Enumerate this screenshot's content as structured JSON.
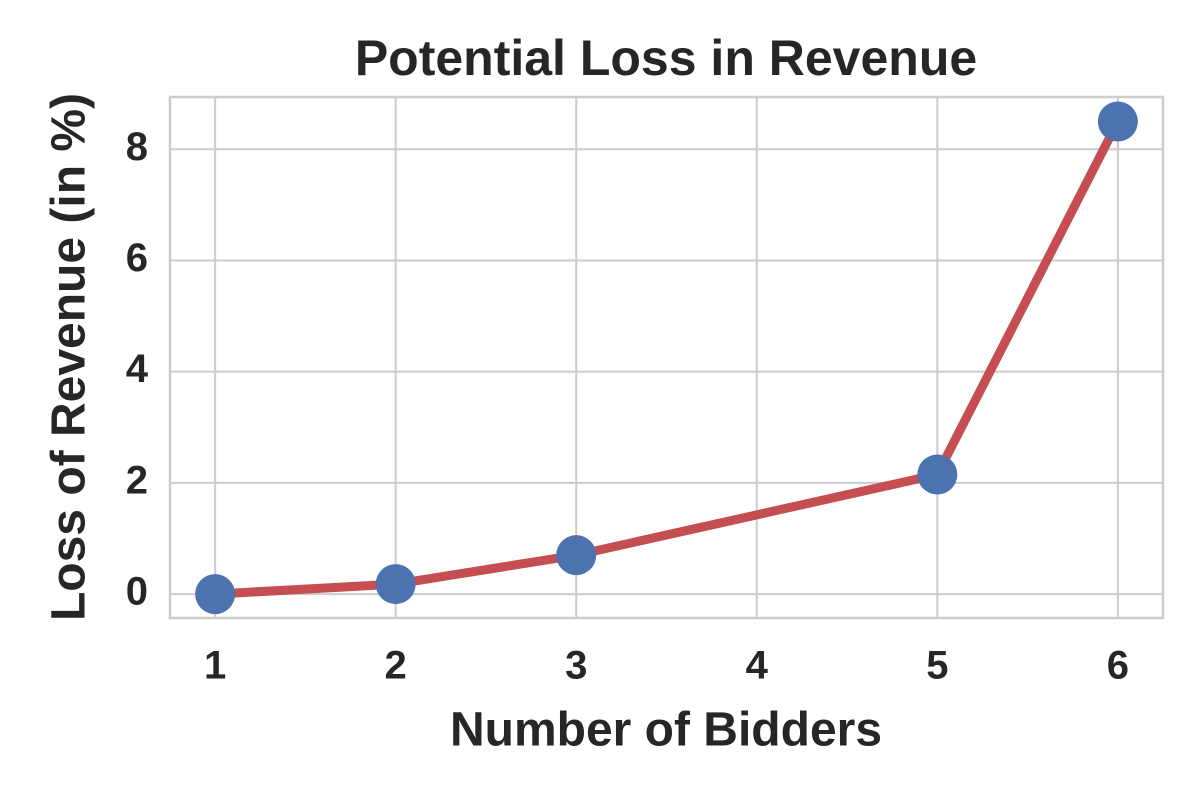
{
  "chart_data": {
    "type": "line",
    "title": "Potential Loss in Revenue",
    "x_label": "Number of Bidders",
    "y_label": "Loss of Revenue (in %)",
    "x": [
      1,
      2,
      3,
      5,
      6
    ],
    "values": [
      0,
      0.18,
      0.7,
      2.15,
      8.5
    ],
    "line_color": "#c44e52",
    "marker_color": "#4c72b0",
    "xlim": [
      0.75,
      6.25
    ],
    "xticks": [
      1,
      2,
      3,
      4,
      5,
      6
    ],
    "ylim": [
      -0.43,
      8.94
    ],
    "yticks": [
      0,
      2,
      4,
      6,
      8
    ],
    "grid": true
  }
}
